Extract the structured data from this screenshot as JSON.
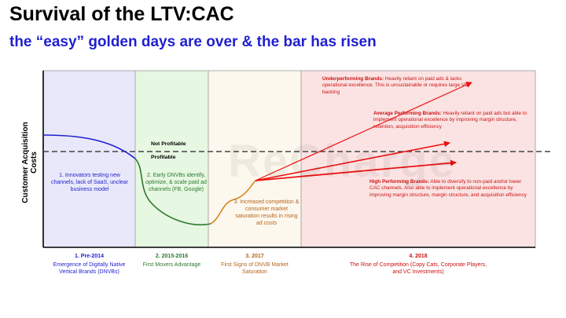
{
  "title": "Survival of the LTV:CAC",
  "subtitle": "the “easy” golden days are over & the bar has risen",
  "y_axis_label": "Customer Acquisition Costs",
  "watermark": "ReCharge",
  "threshold": {
    "above": "Not Profitable",
    "below": "Profitable"
  },
  "phases": [
    {
      "number": "1. Pre-2014",
      "title": "Emergence of Digitally Native Vertical Brands (DNVBs)",
      "desc": "1. Innovators testing new channels, lack of SaaS, unclear business model",
      "color": "#1f1fd0",
      "bg": "#e8e8fa"
    },
    {
      "number": "2. 2015-2016",
      "title": "First Movers Advantage",
      "desc": "2. Early DNVBs identify, optimize, & scale paid ad channels (FB, Google)",
      "color": "#2d7a2d",
      "bg": "#e6f7e2"
    },
    {
      "number": "3. 2017",
      "title": "First Signs of DNVB Market Saturation",
      "desc": "3. Increased competition & consumer market saturation results in rising ad costs",
      "color": "#b5651d",
      "bg": "#fdf8ee"
    },
    {
      "number": "4. 2018",
      "title": "The Rise of Competition (Copy Cats, Corporate Players, and VC Investments)",
      "color": "#cc1111",
      "bg": "#fbe3e3"
    }
  ],
  "brands": {
    "underperforming": {
      "label": "Underperforming Brands:",
      "text": "Heavily reliant on paid ads & lacks operational excellence. This is unsustainable or requires large VC backing"
    },
    "average": {
      "label": "Average Performing Brands:",
      "text": "Heavily reliant on paid ads but able to implement operational excellence by improving margin structure, retention, acquisition efficiency"
    },
    "high": {
      "label": "High Performing Brands:",
      "text": "Able to diversify to non-paid and/or lower CAC channels. Also able to implement operational excellence by improving margin structure, margin structure, and acquisition efficiency"
    }
  }
}
